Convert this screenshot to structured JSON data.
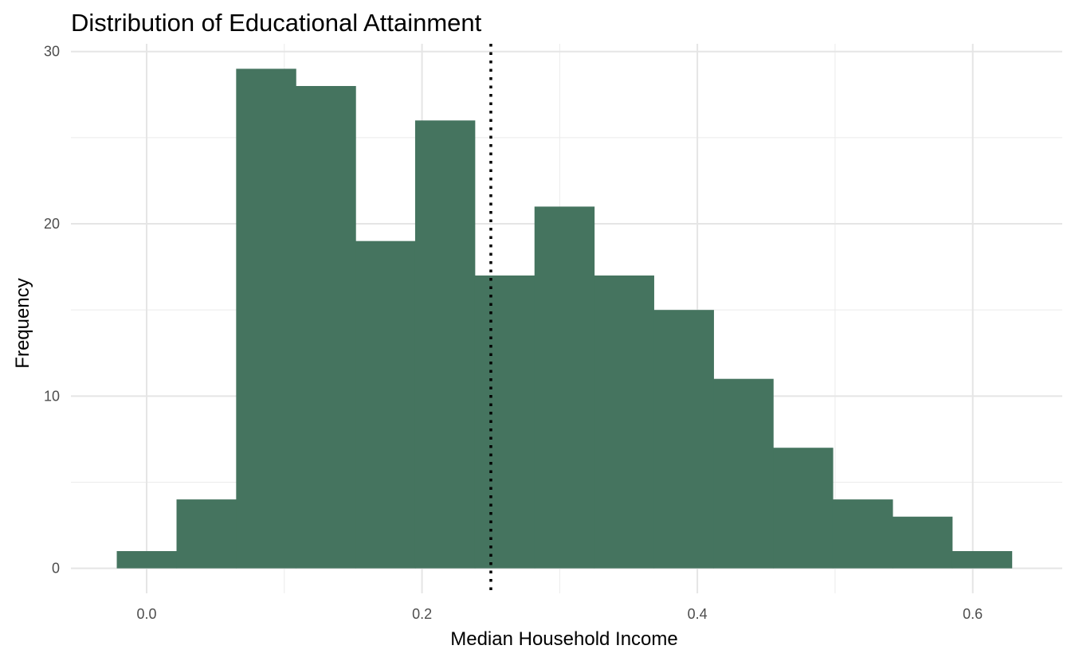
{
  "chart_data": {
    "type": "bar",
    "title": "Distribution of Educational Attainment",
    "xlabel": "Median Household Income",
    "ylabel": "Frequency",
    "xlim": [
      -0.055,
      0.665
    ],
    "ylim": [
      -1.45,
      30.45
    ],
    "x_ticks": [
      {
        "value": 0.0,
        "label": "0.0"
      },
      {
        "value": 0.2,
        "label": "0.2"
      },
      {
        "value": 0.4,
        "label": "0.4"
      },
      {
        "value": 0.6,
        "label": "0.6"
      }
    ],
    "y_ticks": [
      {
        "value": 0,
        "label": "0"
      },
      {
        "value": 10,
        "label": "10"
      },
      {
        "value": 20,
        "label": "20"
      },
      {
        "value": 30,
        "label": "30"
      }
    ],
    "bin_edges": [
      -0.0217,
      0.0217,
      0.065,
      0.1083,
      0.1517,
      0.195,
      0.2383,
      0.2817,
      0.325,
      0.3683,
      0.4117,
      0.455,
      0.4983,
      0.5417,
      0.585,
      0.6283
    ],
    "values": [
      1,
      4,
      29,
      28,
      19,
      26,
      17,
      21,
      17,
      15,
      11,
      7,
      4,
      3,
      1
    ],
    "reference_line": {
      "x": 0.25,
      "style": "dotted"
    },
    "bar_color": "#45745f",
    "grid": true,
    "legend": "none"
  }
}
